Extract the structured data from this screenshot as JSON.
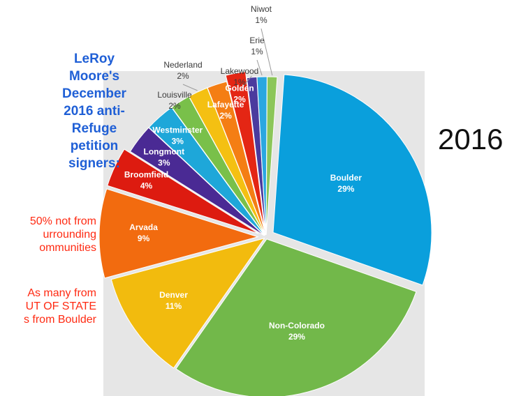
{
  "side_title": "LeRoy\nMoore's\nDecember\n2016 anti-\nRefuge\npetition\nsigners:",
  "notes": [
    "50% not from\nurrounding\nommunities",
    "As many from\nUT OF STATE\ns from Boulder"
  ],
  "year_label": "2016",
  "chart_data": {
    "type": "pie",
    "title": "",
    "background_panel": "#e6e6e6",
    "slices": [
      {
        "label": "Boulder",
        "pct_label": "29%",
        "value": 29,
        "color": "#0a9fdc",
        "exploded": true
      },
      {
        "label": "Non-Colorado",
        "pct_label": "29%",
        "value": 29,
        "color": "#72b84a",
        "exploded": false
      },
      {
        "label": "Denver",
        "pct_label": "11%",
        "value": 11,
        "color": "#f2bb0e",
        "exploded": false
      },
      {
        "label": "Arvada",
        "pct_label": "9%",
        "value": 9,
        "color": "#f26b0f",
        "exploded": true
      },
      {
        "label": "Broomfield",
        "pct_label": "4%",
        "value": 4,
        "color": "#dd1b10",
        "exploded": true
      },
      {
        "label": "Longmont",
        "pct_label": "3%",
        "value": 3,
        "color": "#4a2a94",
        "exploded": false
      },
      {
        "label": "Westminster",
        "pct_label": "3%",
        "value": 3,
        "color": "#1ea7d9",
        "exploded": false
      },
      {
        "label": "Louisville",
        "pct_label": "2%",
        "value": 2,
        "color": "#79c04a",
        "exploded": false
      },
      {
        "label": "Nederland",
        "pct_label": "2%",
        "value": 2,
        "color": "#f4c012",
        "exploded": false
      },
      {
        "label": "Lafayette",
        "pct_label": "2%",
        "value": 2,
        "color": "#f47e14",
        "exploded": false
      },
      {
        "label": "Golden",
        "pct_label": "2%",
        "value": 2,
        "color": "#e42614",
        "exploded": true
      },
      {
        "label": "Lakewood",
        "pct_label": "1%",
        "value": 1,
        "color": "#4b3b9e",
        "exploded": false
      },
      {
        "label": "Erie",
        "pct_label": "1%",
        "value": 1,
        "color": "#2aa7e0",
        "exploded": false
      },
      {
        "label": "Niwot",
        "pct_label": "1%",
        "value": 1,
        "color": "#8cc659",
        "exploded": false
      }
    ]
  }
}
